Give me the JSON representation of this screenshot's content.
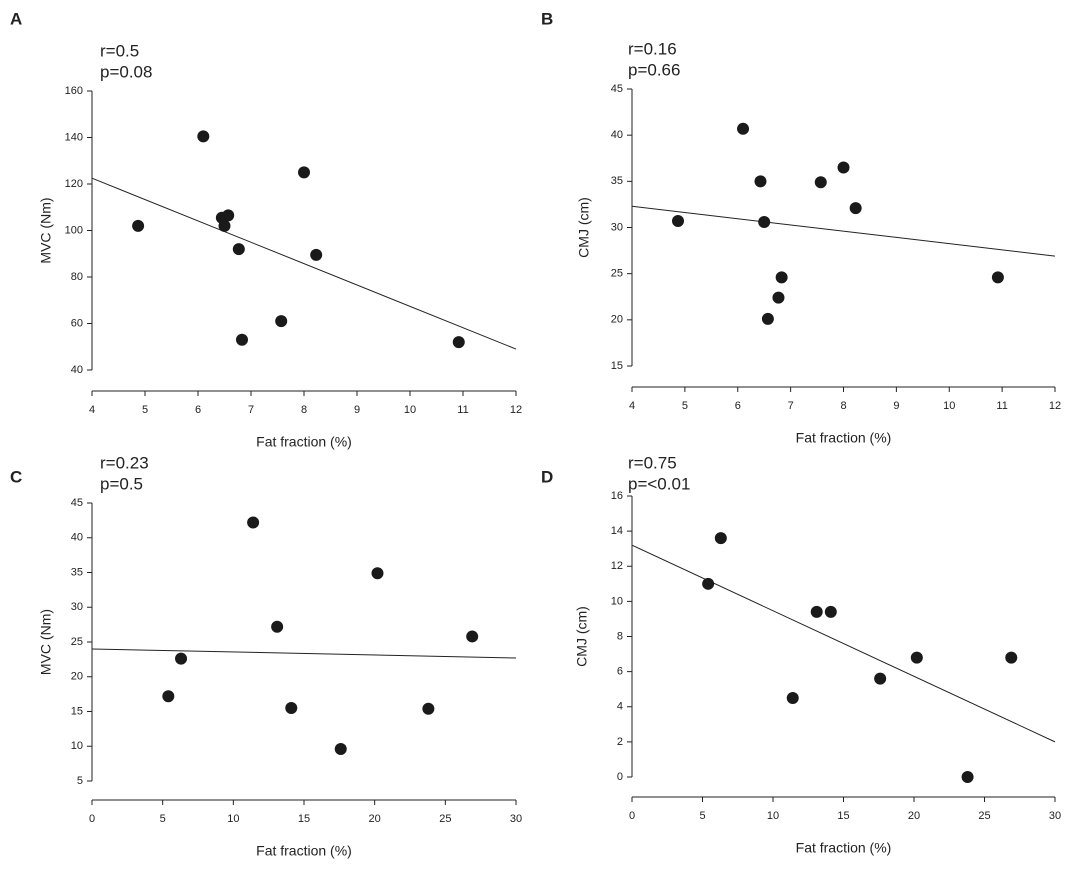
{
  "chart_data": [
    {
      "type": "scatter",
      "panel": "A",
      "annotations": [
        "r=0.5",
        "p=0.08"
      ],
      "xlabel": "Fat fraction (%)",
      "ylabel": "MVC (Nm)",
      "x": [
        4.87,
        6.1,
        6.45,
        6.5,
        6.57,
        6.77,
        6.83,
        7.57,
        8.0,
        8.23,
        10.92
      ],
      "values": [
        102,
        140.5,
        105.5,
        102,
        106.5,
        92,
        53,
        61,
        125,
        89.5,
        52
      ],
      "color": "#1a1a1a",
      "fit": {
        "x": [
          4,
          12
        ],
        "y": [
          122.5,
          49
        ]
      },
      "xlim": [
        4,
        12
      ],
      "xticks": [
        4,
        5,
        6,
        7,
        8,
        9,
        10,
        11,
        12
      ],
      "ylim": [
        40,
        160
      ],
      "yticks": [
        40,
        60,
        80,
        100,
        120,
        140,
        160
      ]
    },
    {
      "type": "scatter",
      "panel": "B",
      "annotations": [
        "r=0.16",
        "p=0.66"
      ],
      "xlabel": "Fat fraction (%)",
      "ylabel": "CMJ (cm)",
      "x": [
        4.87,
        6.1,
        6.43,
        6.5,
        6.57,
        6.77,
        6.83,
        7.57,
        8.0,
        8.23,
        10.92
      ],
      "values": [
        30.7,
        40.7,
        35,
        30.6,
        20.1,
        22.4,
        24.6,
        34.9,
        36.5,
        32.1,
        24.6
      ],
      "color": "#1a1a1a",
      "fit": {
        "x": [
          4,
          12
        ],
        "y": [
          32.3,
          26.9
        ]
      },
      "xlim": [
        4,
        12
      ],
      "xticks": [
        4,
        5,
        6,
        7,
        8,
        9,
        10,
        11,
        12
      ],
      "ylim": [
        15,
        45
      ],
      "yticks": [
        15,
        20,
        25,
        30,
        35,
        40,
        45
      ]
    },
    {
      "type": "scatter",
      "panel": "C",
      "annotations": [
        "r=0.23",
        "p=0.5"
      ],
      "xlabel": "Fat fraction (%)",
      "ylabel": "MVC (Nm)",
      "x": [
        5.4,
        6.3,
        11.4,
        13.1,
        14.1,
        17.6,
        20.2,
        23.8,
        26.9
      ],
      "values": [
        17.2,
        22.6,
        42.2,
        27.2,
        15.5,
        9.6,
        34.9,
        15.4,
        25.8
      ],
      "color": "#1a1a1a",
      "fit": {
        "x": [
          0,
          30
        ],
        "y": [
          24.0,
          22.7
        ]
      },
      "xlim": [
        0,
        30
      ],
      "xticks": [
        0,
        5,
        10,
        15,
        20,
        25,
        30
      ],
      "ylim": [
        5,
        45
      ],
      "yticks": [
        5,
        10,
        15,
        20,
        25,
        30,
        35,
        40,
        45
      ]
    },
    {
      "type": "scatter",
      "panel": "D",
      "annotations": [
        "r=0.75",
        "p=<0.01"
      ],
      "xlabel": "Fat fraction (%)",
      "ylabel": "CMJ (cm)",
      "x": [
        5.4,
        6.3,
        11.4,
        13.1,
        14.1,
        17.6,
        20.2,
        23.8,
        26.9
      ],
      "values": [
        11,
        13.6,
        4.5,
        9.4,
        9.4,
        5.6,
        6.8,
        0,
        6.8
      ],
      "color": "#1a1a1a",
      "fit": {
        "x": [
          0,
          30
        ],
        "y": [
          13.2,
          2.0
        ]
      },
      "xlim": [
        0,
        30
      ],
      "xticks": [
        0,
        5,
        10,
        15,
        20,
        25,
        30
      ],
      "ylim": [
        0,
        16
      ],
      "yticks": [
        0,
        2,
        4,
        6,
        8,
        10,
        12,
        14,
        16
      ]
    }
  ]
}
